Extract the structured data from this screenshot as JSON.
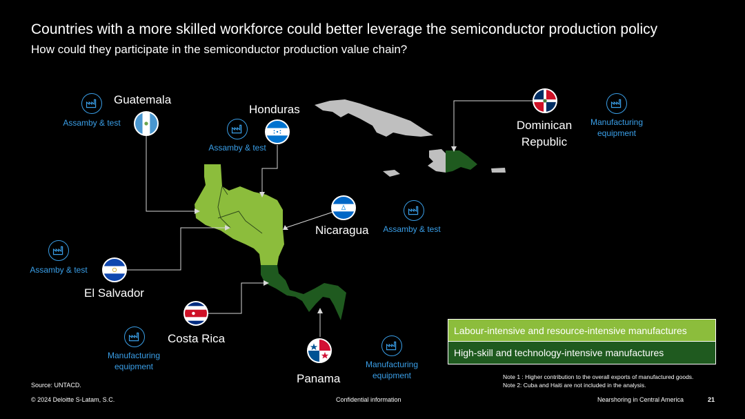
{
  "header": {
    "title": "Countries with a more skilled workforce could better leverage the semiconductor production policy",
    "subtitle": "How could they participate in the semiconductor production value chain?"
  },
  "colors": {
    "labour": "#8cbd3c",
    "hightech": "#1f5a1f",
    "other": "#bfbfbf",
    "accent": "#3a9fe8"
  },
  "countries": {
    "guatemala": {
      "name": "Guatemala",
      "role": "Assamby & test",
      "icon": "factory-icon"
    },
    "honduras": {
      "name": "Honduras",
      "role": "Assamby & test",
      "icon": "factory-icon"
    },
    "dominican": {
      "name_line1": "Dominican",
      "name_line2": "Republic",
      "role_line1": "Manufacturing",
      "role_line2": "equipment",
      "icon": "factory-icon"
    },
    "nicaragua": {
      "name": "Nicaragua",
      "role": "Assamby & test",
      "icon": "factory-icon"
    },
    "elsalvador": {
      "name": "El Salvador",
      "role": "Assamby & test",
      "icon": "factory-icon"
    },
    "costarica": {
      "name": "Costa Rica",
      "role_line1": "Manufacturing",
      "role_line2": "equipment",
      "icon": "factory-icon"
    },
    "panama": {
      "name": "Panama",
      "role_line1": "Manufacturing",
      "role_line2": "equipment",
      "icon": "factory-icon"
    }
  },
  "legend": {
    "labour": "Labour-intensive and resource-intensive manufactures",
    "hightech": "High-skill and technology-intensive manufactures"
  },
  "notes": {
    "note1": "Note 1 : Higher contribution to the overall exports of manufactured goods.",
    "note2": "Note 2: Cuba and Haiti are not included in the analysis."
  },
  "source": "Source: UNTACD.",
  "footer": {
    "copyright": "© 2024 Deloitte S-Latam, S.C.",
    "confidential": "Confidential information",
    "topic": "Nearshoring in Central America",
    "page": "21"
  }
}
